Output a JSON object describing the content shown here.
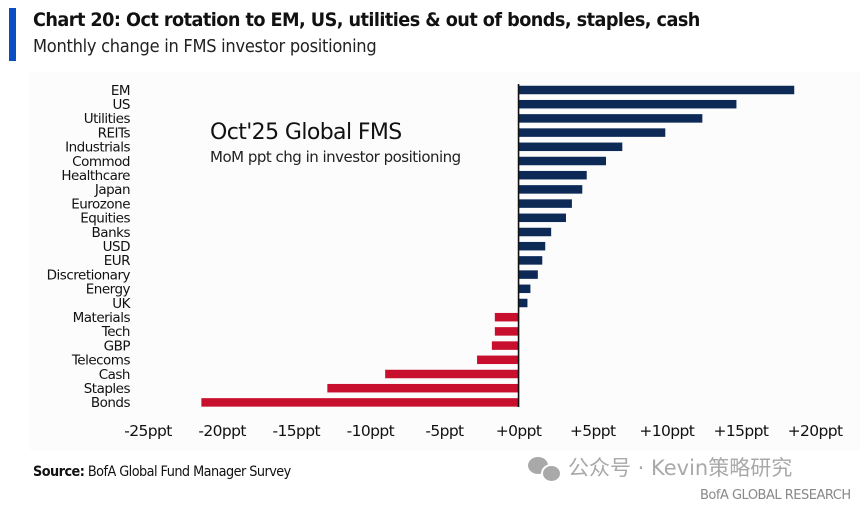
{
  "header": {
    "title": "Chart 20: Oct rotation to EM, US, utilities & out of bonds, staples, cash",
    "subtitle": "Monthly change in FMS investor positioning",
    "accent_color": "#0a4ec4"
  },
  "chart_data": {
    "type": "bar",
    "orientation": "horizontal",
    "inset_title": "Oct'25 Global FMS",
    "inset_subtitle": "MoM ppt chg in investor positioning",
    "categories": [
      "EM",
      "US",
      "Utilities",
      "REITs",
      "Industrials",
      "Commod",
      "Healthcare",
      "Japan",
      "Eurozone",
      "Equities",
      "Banks",
      "USD",
      "EUR",
      "Discretionary",
      "Energy",
      "UK",
      "Materials",
      "Tech",
      "GBP",
      "Telecoms",
      "Cash",
      "Staples",
      "Bonds"
    ],
    "values": [
      18.6,
      14.7,
      12.4,
      9.9,
      7.0,
      5.9,
      4.6,
      4.3,
      3.6,
      3.2,
      2.2,
      1.8,
      1.6,
      1.3,
      0.8,
      0.6,
      -1.6,
      -1.6,
      -1.8,
      -2.8,
      -9.0,
      -12.9,
      -21.4
    ],
    "xlim": [
      -25,
      20
    ],
    "xticks": [
      -25,
      -20,
      -15,
      -10,
      -5,
      0,
      5,
      10,
      15,
      20
    ],
    "xtick_labels": [
      "-25ppt",
      "-20ppt",
      "-15ppt",
      "-10ppt",
      "-5ppt",
      "+0ppt",
      "+5ppt",
      "+10ppt",
      "+15ppt",
      "+20ppt"
    ],
    "xlabel": "",
    "ylabel": "",
    "grid": false,
    "positive_color": "#0d2a57",
    "negative_color": "#c8102e"
  },
  "footer": {
    "source_label": "Source:",
    "source_text": " BofA Global Fund Manager Survey",
    "watermark_text": "公众号 · Kevin策略研究",
    "brand_text": "BofA GLOBAL RESEARCH"
  }
}
